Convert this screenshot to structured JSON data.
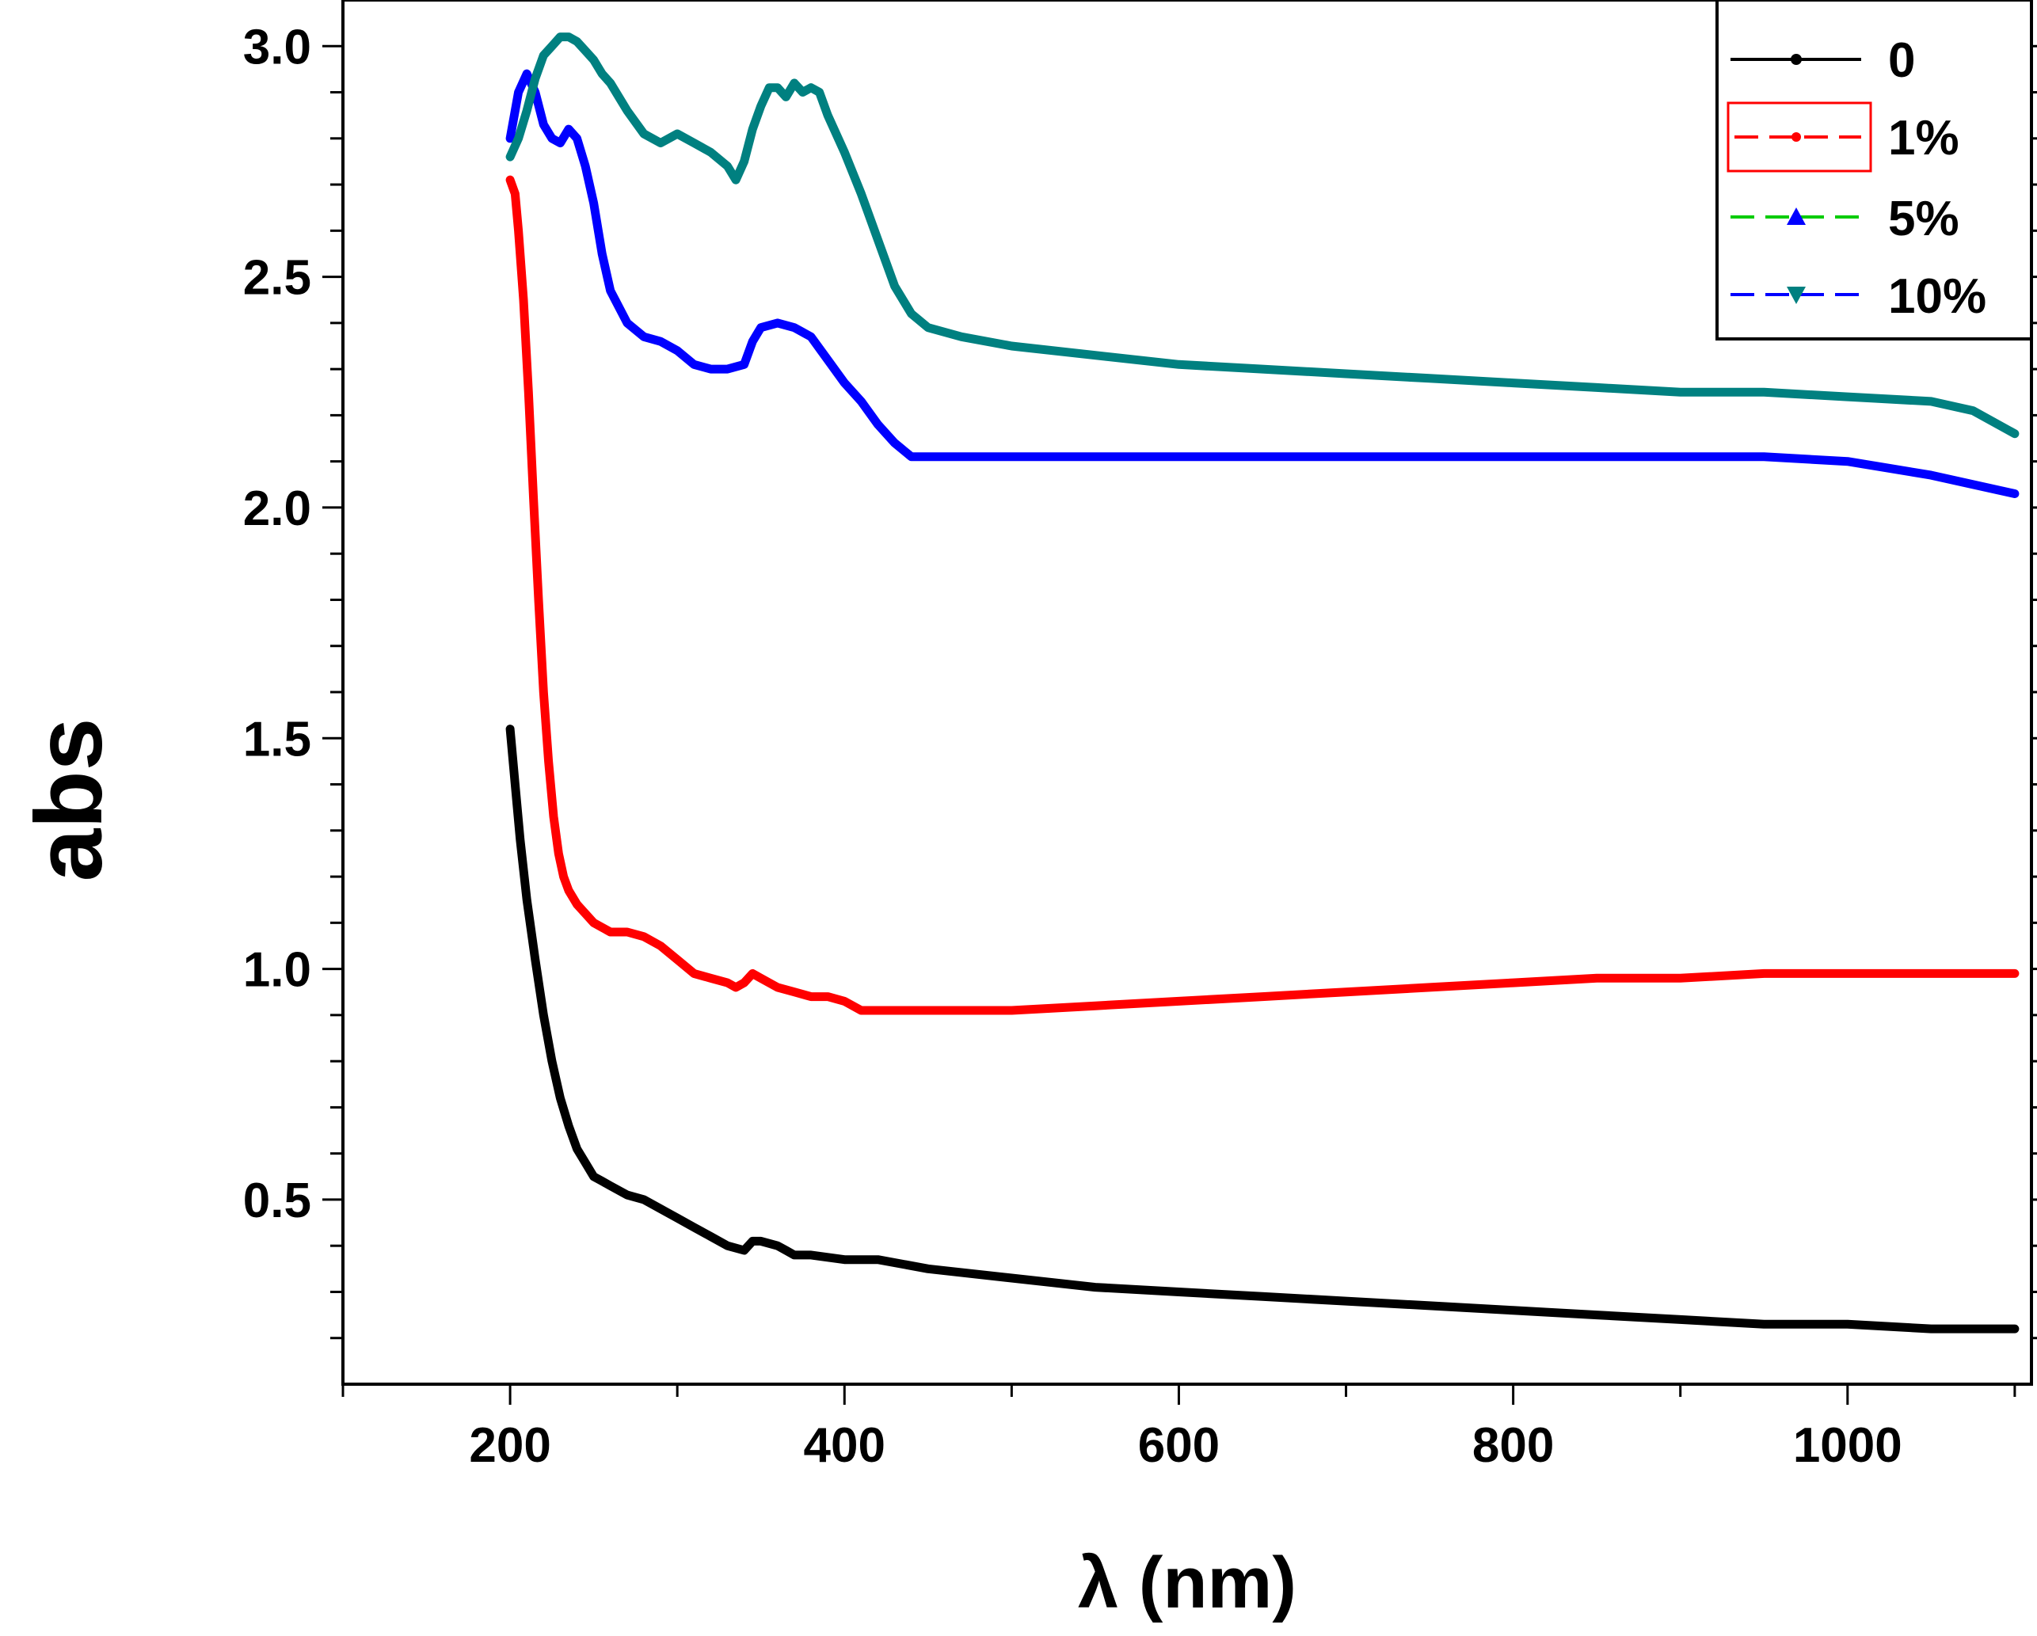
{
  "chart_data": {
    "type": "line",
    "title": "",
    "xlabel": "λ (nm)",
    "ylabel": "abs",
    "xlim": [
      100,
      1110
    ],
    "ylim": [
      0.1,
      3.1
    ],
    "xticks": [
      200,
      400,
      600,
      800,
      1000
    ],
    "xtick_labels": [
      "200",
      "400",
      "600",
      "800",
      "1000"
    ],
    "yticks": [
      0.5,
      1.0,
      1.5,
      2.0,
      2.5,
      3.0
    ],
    "ytick_labels": [
      "0.5",
      "1.0",
      "1.5",
      "2.0",
      "2.5",
      "3.0"
    ],
    "grid": false,
    "legend_position": "top-right",
    "legend": [
      {
        "label": "0",
        "line_color": "#000000",
        "marker": "square",
        "marker_color": "#000000"
      },
      {
        "label": "1%",
        "line_color": "#ff0000",
        "marker": "circle",
        "marker_color": "#ff0000"
      },
      {
        "label": "5%",
        "line_color": "#00cc00",
        "marker": "triangle-up",
        "marker_color": "#0000ff"
      },
      {
        "label": "10%",
        "line_color": "#0000ff",
        "marker": "triangle-down",
        "marker_color": "#008080"
      }
    ],
    "series": [
      {
        "name": "0",
        "color": "#000000",
        "x": [
          200,
          203,
          206,
          210,
          215,
          220,
          225,
          230,
          235,
          240,
          245,
          250,
          255,
          260,
          270,
          280,
          290,
          300,
          310,
          320,
          330,
          340,
          345,
          350,
          360,
          365,
          370,
          380,
          400,
          420,
          450,
          500,
          550,
          600,
          650,
          700,
          750,
          800,
          850,
          900,
          950,
          1000,
          1050,
          1100
        ],
        "y": [
          1.52,
          1.4,
          1.28,
          1.15,
          1.02,
          0.9,
          0.8,
          0.72,
          0.66,
          0.61,
          0.58,
          0.55,
          0.54,
          0.53,
          0.51,
          0.5,
          0.48,
          0.46,
          0.44,
          0.42,
          0.4,
          0.39,
          0.41,
          0.41,
          0.4,
          0.39,
          0.38,
          0.38,
          0.37,
          0.37,
          0.35,
          0.33,
          0.31,
          0.3,
          0.29,
          0.28,
          0.27,
          0.26,
          0.25,
          0.24,
          0.23,
          0.23,
          0.22,
          0.22
        ]
      },
      {
        "name": "1%",
        "color": "#ff0000",
        "x": [
          200,
          203,
          205,
          208,
          211,
          214,
          217,
          220,
          223,
          226,
          229,
          232,
          235,
          240,
          245,
          250,
          255,
          260,
          270,
          280,
          290,
          300,
          310,
          320,
          330,
          335,
          340,
          345,
          350,
          360,
          370,
          380,
          390,
          400,
          410,
          420,
          450,
          500,
          550,
          600,
          650,
          700,
          750,
          800,
          850,
          900,
          950,
          1000,
          1050,
          1100
        ],
        "y": [
          2.71,
          2.68,
          2.6,
          2.45,
          2.25,
          2.02,
          1.8,
          1.6,
          1.45,
          1.33,
          1.25,
          1.2,
          1.17,
          1.14,
          1.12,
          1.1,
          1.09,
          1.08,
          1.08,
          1.07,
          1.05,
          1.02,
          0.99,
          0.98,
          0.97,
          0.96,
          0.97,
          0.99,
          0.98,
          0.96,
          0.95,
          0.94,
          0.94,
          0.93,
          0.91,
          0.91,
          0.91,
          0.91,
          0.92,
          0.93,
          0.94,
          0.95,
          0.96,
          0.97,
          0.98,
          0.98,
          0.99,
          0.99,
          0.99,
          0.99
        ]
      },
      {
        "name": "5%",
        "color": "#0000ff",
        "x": [
          200,
          205,
          210,
          215,
          220,
          225,
          230,
          235,
          240,
          245,
          250,
          255,
          260,
          270,
          280,
          290,
          300,
          310,
          320,
          330,
          340,
          345,
          350,
          360,
          370,
          380,
          390,
          400,
          410,
          420,
          430,
          440,
          450,
          500,
          550,
          600,
          650,
          700,
          750,
          800,
          850,
          900,
          950,
          1000,
          1050,
          1100
        ],
        "y": [
          2.8,
          2.9,
          2.94,
          2.9,
          2.83,
          2.8,
          2.79,
          2.82,
          2.8,
          2.74,
          2.66,
          2.55,
          2.47,
          2.4,
          2.37,
          2.36,
          2.34,
          2.31,
          2.3,
          2.3,
          2.31,
          2.36,
          2.39,
          2.4,
          2.39,
          2.37,
          2.32,
          2.27,
          2.23,
          2.18,
          2.14,
          2.11,
          2.11,
          2.11,
          2.11,
          2.11,
          2.11,
          2.11,
          2.11,
          2.11,
          2.11,
          2.11,
          2.11,
          2.1,
          2.07,
          2.03
        ]
      },
      {
        "name": "10%",
        "color": "#008080",
        "x": [
          200,
          205,
          210,
          215,
          220,
          225,
          230,
          235,
          240,
          245,
          250,
          255,
          260,
          270,
          280,
          290,
          300,
          310,
          320,
          330,
          335,
          340,
          345,
          350,
          355,
          360,
          365,
          370,
          375,
          380,
          385,
          390,
          400,
          410,
          420,
          430,
          440,
          450,
          470,
          500,
          550,
          600,
          650,
          700,
          750,
          800,
          850,
          900,
          950,
          1000,
          1050,
          1075,
          1100
        ],
        "y": [
          2.76,
          2.8,
          2.86,
          2.93,
          2.98,
          3.0,
          3.02,
          3.02,
          3.01,
          2.99,
          2.97,
          2.94,
          2.92,
          2.86,
          2.81,
          2.79,
          2.81,
          2.79,
          2.77,
          2.74,
          2.71,
          2.75,
          2.82,
          2.87,
          2.91,
          2.91,
          2.89,
          2.92,
          2.9,
          2.91,
          2.9,
          2.85,
          2.77,
          2.68,
          2.58,
          2.48,
          2.42,
          2.39,
          2.37,
          2.35,
          2.33,
          2.31,
          2.3,
          2.29,
          2.28,
          2.27,
          2.26,
          2.25,
          2.25,
          2.24,
          2.23,
          2.21,
          2.16
        ]
      }
    ]
  }
}
